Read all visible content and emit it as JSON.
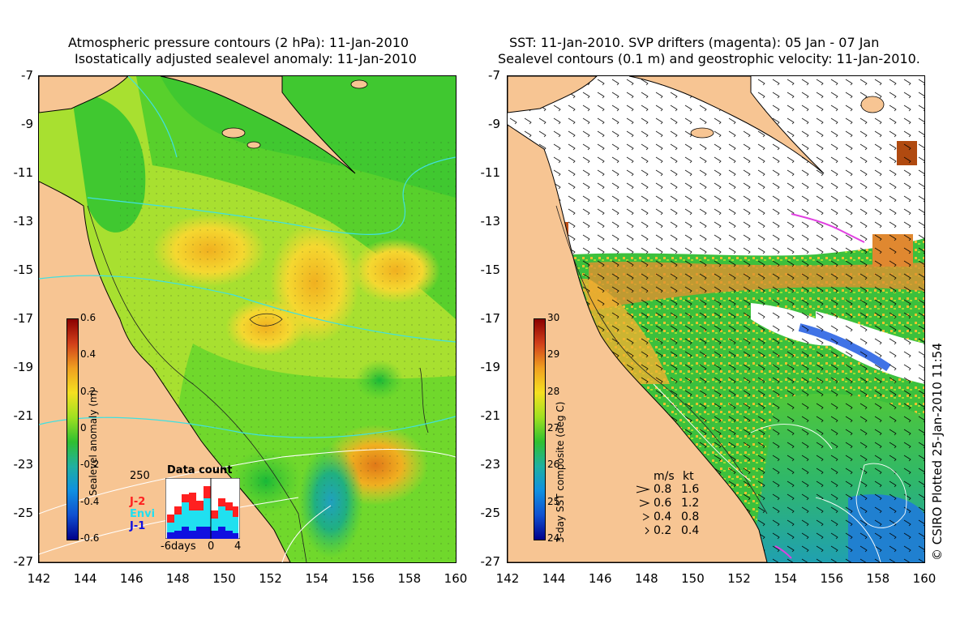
{
  "left_panel": {
    "title_line1": "Atmospheric pressure contours (2 hPa): 11-Jan-2010",
    "title_line2": "Isostatically adjusted sealevel anomaly: 11-Jan-2010",
    "colorbar": {
      "label": "Sealevel anomaly (m)",
      "ticks": [
        "0.6",
        "0.4",
        "0.2",
        "0",
        "-0.2",
        "-0.4",
        "-0.6"
      ],
      "colors": [
        "#8b0000",
        "#d2401a",
        "#f0a020",
        "#f5e020",
        "#a0e020",
        "#30c030",
        "#20b0a0",
        "#1090e0",
        "#1050d0",
        "#00008b"
      ]
    },
    "inset": {
      "title": "Data count",
      "ymax": "250",
      "legend": [
        {
          "label": "J-2",
          "color": "#ff2020"
        },
        {
          "label": "Envi",
          "color": "#20e0f0"
        },
        {
          "label": "J-1",
          "color": "#1010e0"
        }
      ],
      "xticks": [
        "-6days",
        "0",
        "4"
      ]
    }
  },
  "right_panel": {
    "title_line1": "SST: 11-Jan-2010. SVP drifters (magenta): 05 Jan - 07 Jan",
    "title_line2": "Sealevel contours (0.1 m) and geostrophic velocity: 11-Jan-2010.",
    "colorbar": {
      "label": "3-day SST composite (deg C)",
      "ticks": [
        "30",
        "29",
        "28",
        "27",
        "26",
        "25",
        "24"
      ],
      "colors": [
        "#8b0000",
        "#d2401a",
        "#f0a020",
        "#f5e020",
        "#a0e020",
        "#30c030",
        "#20b0a0",
        "#1090e0",
        "#1050d0",
        "#00008b"
      ]
    },
    "velocity_key": {
      "header_ms": "m/s",
      "header_kt": "kt",
      "rows": [
        {
          "ms": "0.8",
          "kt": "1.6"
        },
        {
          "ms": "0.6",
          "kt": "1.2"
        },
        {
          "ms": "0.4",
          "kt": "0.8"
        },
        {
          "ms": "0.2",
          "kt": "0.4"
        }
      ]
    }
  },
  "axes": {
    "lat_ticks": [
      "-7",
      "-9",
      "-11",
      "-13",
      "-15",
      "-17",
      "-19",
      "-21",
      "-23",
      "-25",
      "-27"
    ],
    "lon_ticks": [
      "142",
      "144",
      "146",
      "148",
      "150",
      "152",
      "154",
      "156",
      "158",
      "160"
    ]
  },
  "credit": "© CSIRO Plotted 25-Jan-2010 11:54",
  "colors": {
    "land": "#f7c593",
    "ocean_green": "#4cd02c",
    "ocean_yellow": "#c8e830",
    "contour_cyan": "#40e0e0",
    "drifter_magenta": "#e040e0"
  }
}
